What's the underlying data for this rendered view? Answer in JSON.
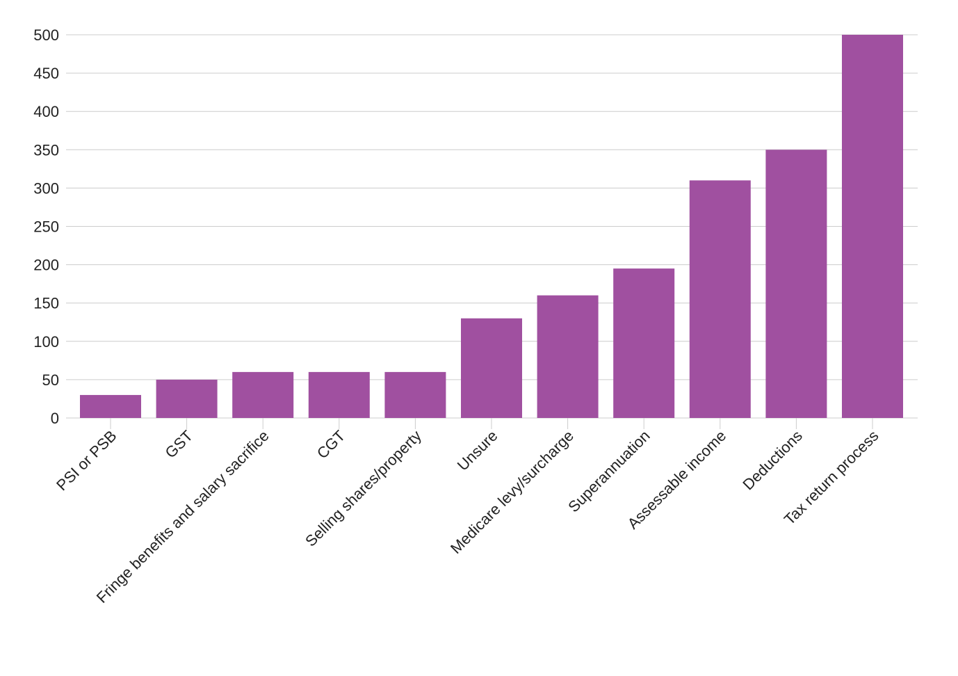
{
  "chart_data": {
    "type": "bar",
    "title": "",
    "xlabel": "",
    "ylabel": "",
    "categories": [
      "PSI or PSB",
      "GST",
      "Fringe benefits and salary sacrifice",
      "CGT",
      "Selling shares/property",
      "Unsure",
      "Medicare levy/surcharge",
      "Superannuation",
      "Assessable income",
      "Deductions",
      "Tax return process"
    ],
    "values": [
      30,
      50,
      60,
      60,
      60,
      130,
      160,
      195,
      310,
      350,
      500
    ],
    "ylim": [
      0,
      500
    ],
    "yticks": [
      0,
      50,
      100,
      150,
      200,
      250,
      300,
      350,
      400,
      450,
      500
    ],
    "grid": true,
    "bar_color": "#a050a0",
    "grid_color": "#cccccc"
  }
}
